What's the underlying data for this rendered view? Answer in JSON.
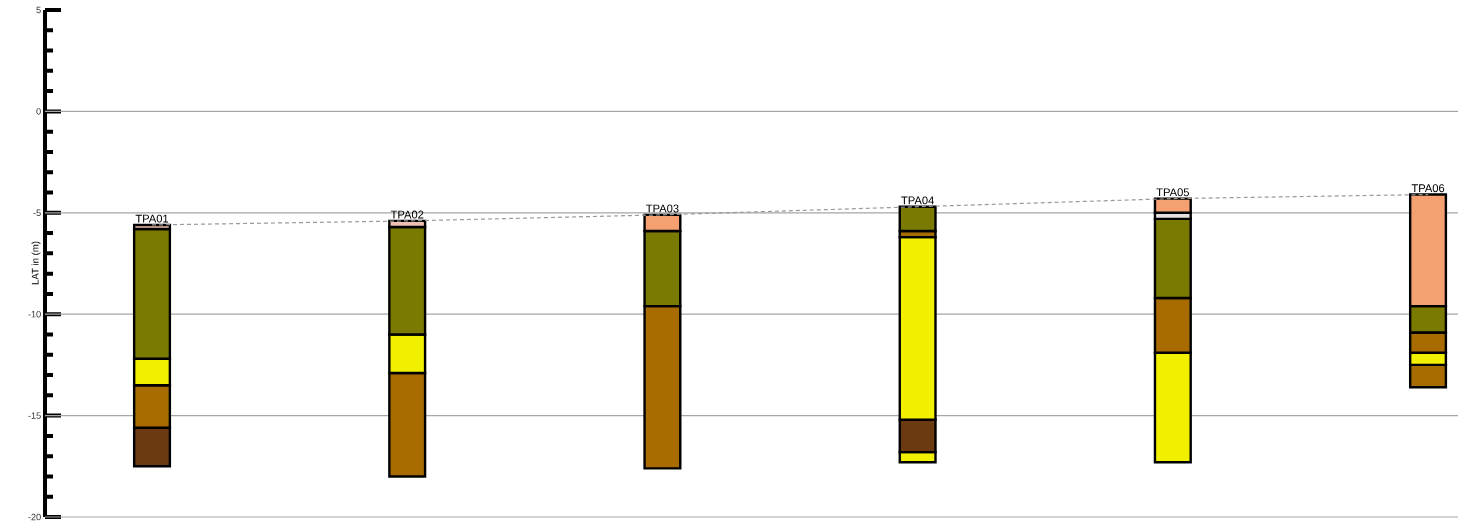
{
  "chart_data": {
    "type": "bar",
    "ylabel": "LAT in (m)",
    "categories": [
      "TPA01",
      "TPA02",
      "TPA03",
      "TPA04",
      "TPA05",
      "TPA06"
    ],
    "series": [
      {
        "base": [
          -17.5,
          -18.0,
          -17.6,
          -17.3,
          -17.3,
          -13.6
        ],
        "values": [
          1.9,
          5.1,
          8.0,
          0.5,
          5.4,
          1.1
        ],
        "colors": [
          "#6b3a10",
          "#a86b00",
          "#a86b00",
          "#f0f000",
          "#f0f000",
          "#a86b00"
        ]
      },
      {
        "base": [
          -15.6,
          -12.9,
          -9.6,
          -16.8,
          -11.9,
          -12.5
        ],
        "values": [
          2.1,
          1.9,
          3.7,
          1.6,
          2.7,
          0.6
        ],
        "colors": [
          "#a86b00",
          "#f0f000",
          "#7a7a00",
          "#6b3a10",
          "#a86b00",
          "#f0f000"
        ]
      },
      {
        "base": [
          -13.5,
          -11.0,
          -5.9,
          -15.2,
          -9.2,
          -11.9
        ],
        "values": [
          1.3,
          5.3,
          0.8,
          9.0,
          3.9,
          1.0
        ],
        "colors": [
          "#f0f000",
          "#7a7a00",
          "#f4a070",
          "#f0f000",
          "#7a7a00",
          "#a86b00"
        ]
      },
      {
        "base": [
          -12.2,
          -5.7,
          null,
          -6.2,
          -5.3,
          -10.9
        ],
        "values": [
          6.4,
          0.3,
          null,
          0.3,
          0.3,
          1.3
        ],
        "colors": [
          "#7a7a00",
          "#f0c0b0",
          null,
          "#a86b00",
          "#e8e0e0",
          "#7a7a00"
        ]
      },
      {
        "base": [
          -5.8,
          null,
          null,
          -5.9,
          -5.0,
          -9.6
        ],
        "values": [
          0.2,
          null,
          null,
          1.2,
          0.7,
          5.5
        ],
        "colors": [
          "#f0c0b0",
          null,
          null,
          "#7a7a00",
          "#f4a070",
          "#f4a070"
        ]
      },
      {
        "type": "line",
        "color": "#999999",
        "line_style": "dashed",
        "marker": "none",
        "values": [
          -5.6,
          -5.4,
          -5.1,
          -4.7,
          -4.3,
          -4.1
        ]
      }
    ],
    "ylim": [
      -20,
      5
    ],
    "yticks": [
      5,
      {
        "value": 4,
        "label": null
      },
      {
        "value": 3,
        "label": null
      },
      {
        "value": 2,
        "label": null
      },
      {
        "value": 1,
        "label": null
      },
      0,
      {
        "value": -1,
        "label": null
      },
      {
        "value": -2,
        "label": null
      },
      {
        "value": -3,
        "label": null
      },
      {
        "value": -4,
        "label": null
      },
      -5,
      {
        "value": -6,
        "label": null
      },
      {
        "value": -7,
        "label": null
      },
      {
        "value": -8,
        "label": null
      },
      {
        "value": -9,
        "label": null
      },
      -10,
      {
        "value": -11,
        "label": null
      },
      {
        "value": -12,
        "label": null
      },
      {
        "value": -13,
        "label": null
      },
      {
        "value": -14,
        "label": null
      },
      -15,
      {
        "value": -16,
        "label": null
      },
      {
        "value": -17,
        "label": null
      },
      {
        "value": -18,
        "label": null
      },
      {
        "value": -19,
        "label": null
      },
      -20
    ],
    "grid": "y"
  }
}
